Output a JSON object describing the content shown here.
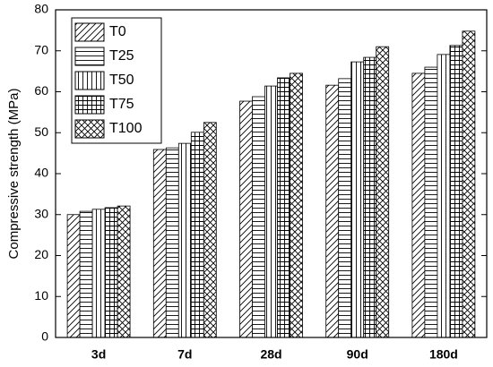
{
  "chart_data": {
    "type": "bar",
    "y_label": "Compressive strength (MPa)",
    "categories": [
      "3d",
      "7d",
      "28d",
      "90d",
      "180d"
    ],
    "series": [
      {
        "name": "T0",
        "color": "#000000",
        "hatch": "/",
        "values": [
          30.0,
          45.9,
          57.7,
          61.6,
          64.5
        ]
      },
      {
        "name": "T25",
        "color": "#000000",
        "hatch": "-",
        "values": [
          30.8,
          46.3,
          58.8,
          63.2,
          66.0
        ]
      },
      {
        "name": "T50",
        "color": "#000000",
        "hatch": "|",
        "values": [
          31.3,
          47.4,
          61.4,
          67.3,
          69.1
        ]
      },
      {
        "name": "T75",
        "color": "#000000",
        "hatch": "+",
        "values": [
          31.7,
          50.1,
          63.4,
          68.4,
          71.3
        ]
      },
      {
        "name": "T100",
        "color": "#000000",
        "hatch": "x",
        "values": [
          32.1,
          52.5,
          64.5,
          71.0,
          74.8
        ]
      }
    ],
    "ylim": [
      0,
      80
    ],
    "yticks": [
      0,
      10,
      20,
      30,
      40,
      50,
      60,
      70,
      80
    ],
    "legend": "upper left"
  }
}
